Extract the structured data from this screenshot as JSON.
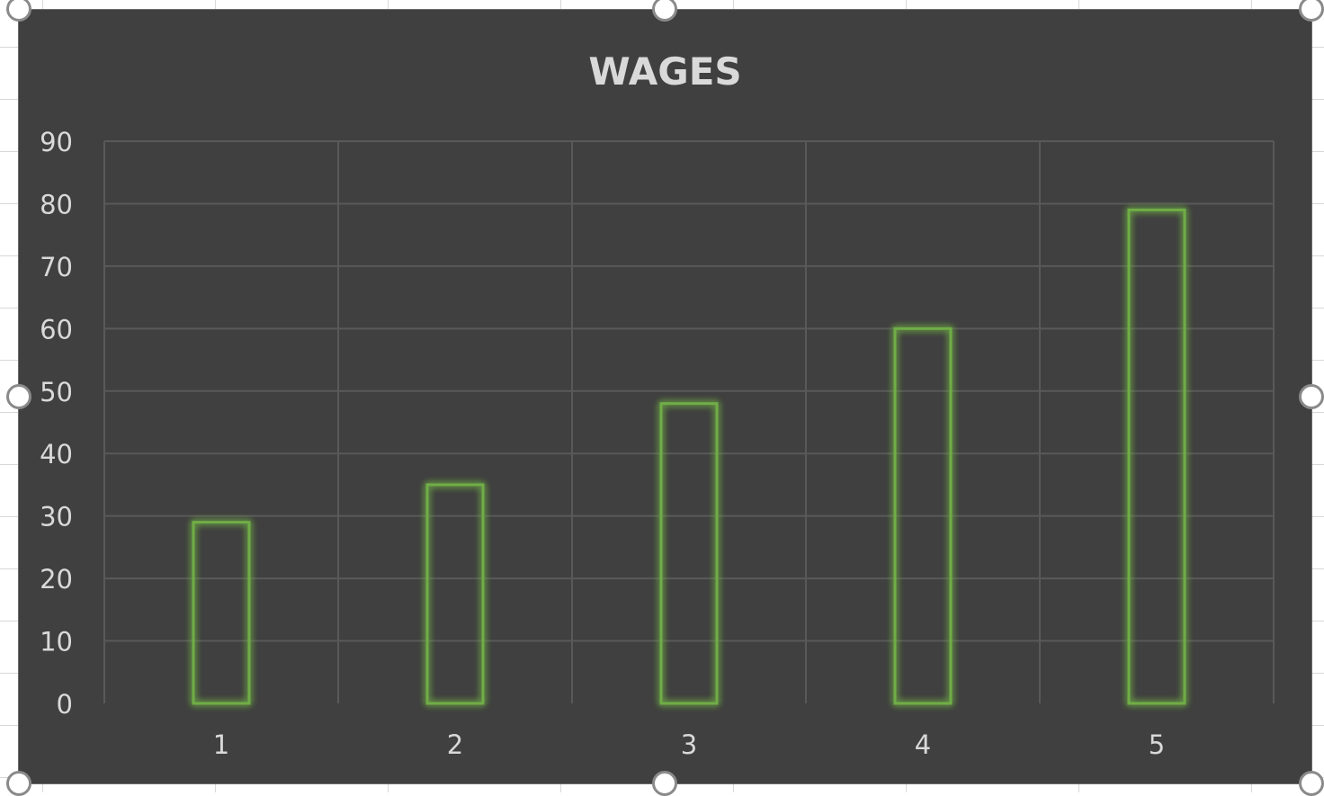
{
  "chart_data": {
    "type": "bar",
    "title": "WAGES",
    "xlabel": "",
    "ylabel": "",
    "categories": [
      "1",
      "2",
      "3",
      "4",
      "5"
    ],
    "values": [
      29,
      35,
      48,
      60,
      79
    ],
    "ylim": [
      0,
      90
    ],
    "yticks": [
      "0",
      "10",
      "20",
      "30",
      "40",
      "50",
      "60",
      "70",
      "80",
      "90"
    ],
    "grid": true,
    "legend": "none"
  },
  "colors": {
    "chart_background": "#404040",
    "bar_outline": "#70ad47",
    "bar_glow": "#9bd35a",
    "gridline": "#595959",
    "text": "#d9d9d9"
  }
}
